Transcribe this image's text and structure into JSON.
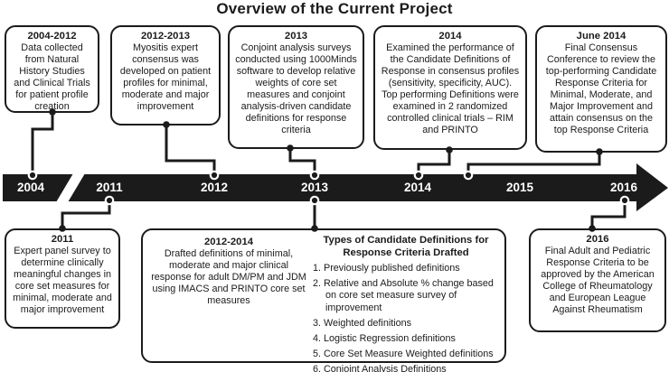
{
  "title": "Overview of the Current Project",
  "colors": {
    "ink": "#1b1b1b",
    "background": "#ffffff",
    "year_text": "#ffffff"
  },
  "timeline": {
    "years": [
      "2004",
      "2011",
      "2012",
      "2013",
      "2014",
      "2015",
      "2016"
    ],
    "has_break_between": [
      "2004",
      "2011"
    ],
    "direction": "arrow-right"
  },
  "top_boxes": [
    {
      "period": "2004-2012",
      "text": "Data collected from Natural History Studies and Clinical Trials for patient profile creation"
    },
    {
      "period": "2012-2013",
      "text": "Myositis expert consensus was developed on patient profiles for minimal, moderate and major improvement"
    },
    {
      "period": "2013",
      "text": "Conjoint analysis surveys conducted using 1000Minds software to develop relative weights of core set measures and conjoint analysis-driven candidate definitions for response criteria"
    },
    {
      "period": "2014",
      "text": "Examined the performance of the Candidate Definitions of Response in consensus profiles (sensitivity, specificity, AUC). Top performing Definitions were examined in 2 randomized controlled clinical trials – RIM and PRINTO"
    },
    {
      "period": "June 2014",
      "text": "Final Consensus Conference to review the top-performing Candidate Response Criteria for Minimal, Moderate, and Major Improvement and attain consensus on the top Response Criteria"
    }
  ],
  "bottom_boxes": {
    "box_2011": {
      "period": "2011",
      "text": "Expert panel survey to determine clinically meaningful changes in core set measures for minimal, moderate and major improvement"
    },
    "box_middle": {
      "left": {
        "period": "2012-2014",
        "text": "Drafted definitions of minimal, moderate and major clinical response for adult DM/PM and JDM using IMACS and PRINTO core set measures"
      },
      "right": {
        "heading": "Types of Candidate Definitions for Response Criteria Drafted",
        "items": [
          "Previously published definitions",
          "Relative and Absolute % change based on core set measure survey of improvement",
          "Weighted definitions",
          "Logistic Regression definitions",
          "Core Set Measure Weighted definitions",
          "Conjoint Analysis Definitions"
        ]
      }
    },
    "box_2016": {
      "period": "2016",
      "text": "Final Adult and Pediatric Response Criteria to be approved by the American College of Rheumatology and European League Against Rheumatism"
    }
  }
}
